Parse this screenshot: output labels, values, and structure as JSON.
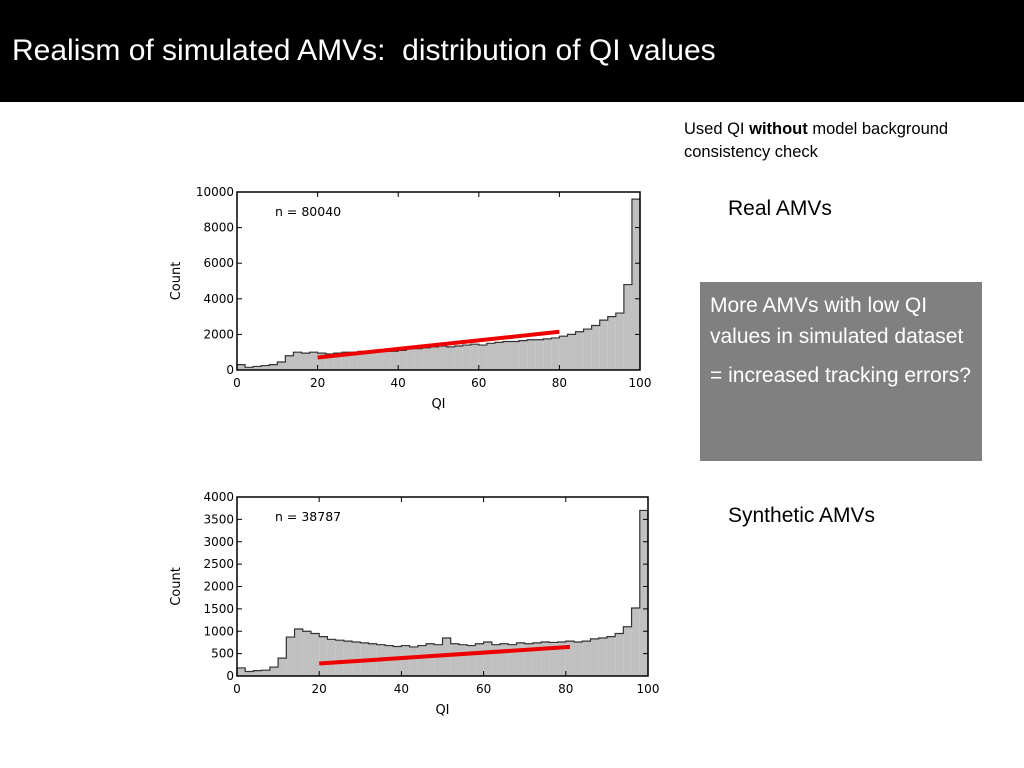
{
  "header": {
    "title": "Realism of simulated AMVs:  distribution of QI values"
  },
  "note": {
    "prefix": "Used QI ",
    "bold": "without",
    "suffix": " model background consistency check"
  },
  "labels": {
    "real": "Real AMVs",
    "synthetic": "Synthetic AMVs"
  },
  "callout": {
    "line1": "More AMVs with low QI values in simulated dataset",
    "line2": "= increased tracking errors?"
  },
  "colors": {
    "bar_fill": "#c0c0c0",
    "bar_edge": "#333333",
    "trend": "#ee0000",
    "header_bg": "#000000",
    "callout_bg": "#808080"
  },
  "chart_data": [
    {
      "type": "bar",
      "subtype": "histogram",
      "annotation": "n = 80040",
      "xlabel": "QI",
      "ylabel": "Count",
      "xlim": [
        0,
        100
      ],
      "ylim": [
        0,
        10000
      ],
      "xticks": [
        "0",
        "20",
        "40",
        "60",
        "80",
        "100"
      ],
      "yticks": [
        "0",
        "2000",
        "4000",
        "6000",
        "8000",
        "10000"
      ],
      "bin_width": 2,
      "x": [
        0,
        2,
        4,
        6,
        8,
        10,
        12,
        14,
        16,
        18,
        20,
        22,
        24,
        26,
        28,
        30,
        32,
        34,
        36,
        38,
        40,
        42,
        44,
        46,
        48,
        50,
        52,
        54,
        56,
        58,
        60,
        62,
        64,
        66,
        68,
        70,
        72,
        74,
        76,
        78,
        80,
        82,
        84,
        86,
        88,
        90,
        92,
        94,
        96,
        98
      ],
      "values": [
        300,
        150,
        200,
        250,
        300,
        450,
        800,
        1000,
        950,
        1000,
        950,
        900,
        950,
        1000,
        1000,
        1050,
        1000,
        1100,
        1100,
        1050,
        1100,
        1200,
        1200,
        1250,
        1300,
        1350,
        1300,
        1350,
        1400,
        1450,
        1400,
        1500,
        1550,
        1600,
        1600,
        1650,
        1700,
        1700,
        1750,
        1800,
        1900,
        2000,
        2150,
        2300,
        2500,
        2800,
        3000,
        3200,
        4800,
        9600
      ],
      "trend": {
        "x": [
          20,
          80
        ],
        "y": [
          700,
          2150
        ]
      },
      "grid": false
    },
    {
      "type": "bar",
      "subtype": "histogram",
      "annotation": "n = 38787",
      "xlabel": "QI",
      "ylabel": "Count",
      "xlim": [
        0,
        100
      ],
      "ylim": [
        0,
        4000
      ],
      "xticks": [
        "0",
        "20",
        "40",
        "60",
        "80",
        "100"
      ],
      "yticks": [
        "0",
        "500",
        "1000",
        "1500",
        "2000",
        "2500",
        "3000",
        "3500",
        "4000"
      ],
      "bin_width": 2,
      "x": [
        0,
        2,
        4,
        6,
        8,
        10,
        12,
        14,
        16,
        18,
        20,
        22,
        24,
        26,
        28,
        30,
        32,
        34,
        36,
        38,
        40,
        42,
        44,
        46,
        48,
        50,
        52,
        54,
        56,
        58,
        60,
        62,
        64,
        66,
        68,
        70,
        72,
        74,
        76,
        78,
        80,
        82,
        84,
        86,
        88,
        90,
        92,
        94,
        96,
        98
      ],
      "values": [
        180,
        100,
        120,
        130,
        200,
        400,
        870,
        1050,
        1000,
        950,
        880,
        820,
        800,
        780,
        760,
        740,
        720,
        700,
        680,
        660,
        680,
        650,
        680,
        720,
        700,
        850,
        720,
        700,
        680,
        720,
        760,
        700,
        720,
        700,
        740,
        720,
        740,
        760,
        750,
        760,
        780,
        760,
        780,
        830,
        850,
        880,
        950,
        1100,
        1520,
        3700
      ],
      "trend": {
        "x": [
          20,
          81
        ],
        "y": [
          280,
          650
        ]
      },
      "grid": false
    }
  ]
}
